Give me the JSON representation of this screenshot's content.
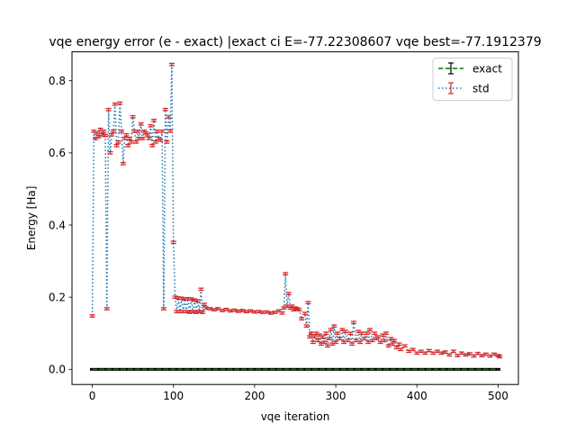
{
  "chart_data": {
    "type": "line",
    "title": "vqe energy error (e - exact) |exact ci E=-77.22308607 vqe best=-77.1912379",
    "xlabel": "vqe iteration",
    "ylabel": "Energy [Ha]",
    "xlim": [
      -25,
      525
    ],
    "ylim": [
      -0.042,
      0.88
    ],
    "xticks": [
      0,
      100,
      200,
      300,
      400,
      500
    ],
    "yticks": [
      0.0,
      0.2,
      0.4,
      0.6,
      0.8
    ],
    "xtick_labels": [
      "0",
      "100",
      "200",
      "300",
      "400",
      "500"
    ],
    "ytick_labels": [
      "0.0",
      "0.2",
      "0.4",
      "0.6",
      "0.8"
    ],
    "grid": false,
    "legend_position": "top-right",
    "legend": [
      "exact",
      "std"
    ],
    "series": [
      {
        "name": "exact",
        "style": "dashed",
        "color": "#008000",
        "errorbar_color": "#000000",
        "x_range": [
          0,
          500
        ],
        "constant_value": 0.0
      },
      {
        "name": "std",
        "style": "dotted",
        "color": "#1f77b4",
        "errorbar_color": "#d62728",
        "errorbar_halfwidth": 0.003,
        "points": [
          [
            0,
            0.148
          ],
          [
            2,
            0.66
          ],
          [
            4,
            0.64
          ],
          [
            6,
            0.655
          ],
          [
            8,
            0.645
          ],
          [
            10,
            0.665
          ],
          [
            12,
            0.65
          ],
          [
            14,
            0.66
          ],
          [
            16,
            0.648
          ],
          [
            18,
            0.168
          ],
          [
            20,
            0.72
          ],
          [
            22,
            0.6
          ],
          [
            24,
            0.65
          ],
          [
            26,
            0.66
          ],
          [
            28,
            0.735
          ],
          [
            30,
            0.62
          ],
          [
            32,
            0.63
          ],
          [
            34,
            0.738
          ],
          [
            36,
            0.66
          ],
          [
            38,
            0.57
          ],
          [
            40,
            0.64
          ],
          [
            42,
            0.65
          ],
          [
            44,
            0.62
          ],
          [
            46,
            0.64
          ],
          [
            48,
            0.63
          ],
          [
            50,
            0.7
          ],
          [
            52,
            0.66
          ],
          [
            54,
            0.63
          ],
          [
            56,
            0.66
          ],
          [
            58,
            0.64
          ],
          [
            60,
            0.68
          ],
          [
            62,
            0.64
          ],
          [
            64,
            0.66
          ],
          [
            66,
            0.655
          ],
          [
            68,
            0.65
          ],
          [
            70,
            0.64
          ],
          [
            72,
            0.675
          ],
          [
            74,
            0.62
          ],
          [
            76,
            0.69
          ],
          [
            78,
            0.63
          ],
          [
            80,
            0.66
          ],
          [
            82,
            0.64
          ],
          [
            84,
            0.635
          ],
          [
            86,
            0.66
          ],
          [
            88,
            0.168
          ],
          [
            90,
            0.72
          ],
          [
            92,
            0.63
          ],
          [
            94,
            0.7
          ],
          [
            96,
            0.66
          ],
          [
            98,
            0.845
          ],
          [
            100,
            0.352
          ],
          [
            102,
            0.2
          ],
          [
            104,
            0.16
          ],
          [
            106,
            0.198
          ],
          [
            108,
            0.16
          ],
          [
            110,
            0.197
          ],
          [
            112,
            0.16
          ],
          [
            114,
            0.195
          ],
          [
            116,
            0.16
          ],
          [
            118,
            0.196
          ],
          [
            120,
            0.158
          ],
          [
            122,
            0.195
          ],
          [
            124,
            0.16
          ],
          [
            126,
            0.192
          ],
          [
            128,
            0.158
          ],
          [
            130,
            0.19
          ],
          [
            132,
            0.16
          ],
          [
            134,
            0.222
          ],
          [
            136,
            0.158
          ],
          [
            138,
            0.18
          ],
          [
            140,
            0.17
          ],
          [
            145,
            0.168
          ],
          [
            150,
            0.165
          ],
          [
            155,
            0.168
          ],
          [
            160,
            0.163
          ],
          [
            165,
            0.166
          ],
          [
            170,
            0.162
          ],
          [
            175,
            0.164
          ],
          [
            180,
            0.161
          ],
          [
            185,
            0.163
          ],
          [
            190,
            0.16
          ],
          [
            195,
            0.162
          ],
          [
            200,
            0.159
          ],
          [
            205,
            0.16
          ],
          [
            210,
            0.158
          ],
          [
            215,
            0.159
          ],
          [
            220,
            0.156
          ],
          [
            225,
            0.158
          ],
          [
            230,
            0.162
          ],
          [
            234,
            0.156
          ],
          [
            236,
            0.17
          ],
          [
            238,
            0.265
          ],
          [
            240,
            0.175
          ],
          [
            242,
            0.21
          ],
          [
            244,
            0.17
          ],
          [
            246,
            0.175
          ],
          [
            248,
            0.165
          ],
          [
            250,
            0.17
          ],
          [
            252,
            0.168
          ],
          [
            255,
            0.165
          ],
          [
            258,
            0.14
          ],
          [
            262,
            0.155
          ],
          [
            264,
            0.12
          ],
          [
            266,
            0.185
          ],
          [
            268,
            0.09
          ],
          [
            270,
            0.1
          ],
          [
            272,
            0.075
          ],
          [
            274,
            0.09
          ],
          [
            276,
            0.1
          ],
          [
            278,
            0.08
          ],
          [
            280,
            0.095
          ],
          [
            282,
            0.07
          ],
          [
            284,
            0.09
          ],
          [
            286,
            0.075
          ],
          [
            288,
            0.1
          ],
          [
            290,
            0.065
          ],
          [
            292,
            0.085
          ],
          [
            294,
            0.11
          ],
          [
            296,
            0.07
          ],
          [
            298,
            0.12
          ],
          [
            300,
            0.075
          ],
          [
            302,
            0.1
          ],
          [
            305,
            0.085
          ],
          [
            308,
            0.11
          ],
          [
            310,
            0.075
          ],
          [
            312,
            0.105
          ],
          [
            315,
            0.08
          ],
          [
            318,
            0.1
          ],
          [
            320,
            0.07
          ],
          [
            322,
            0.13
          ],
          [
            325,
            0.08
          ],
          [
            328,
            0.105
          ],
          [
            330,
            0.075
          ],
          [
            332,
            0.1
          ],
          [
            335,
            0.085
          ],
          [
            338,
            0.1
          ],
          [
            340,
            0.075
          ],
          [
            342,
            0.11
          ],
          [
            345,
            0.08
          ],
          [
            348,
            0.1
          ],
          [
            350,
            0.085
          ],
          [
            352,
            0.09
          ],
          [
            355,
            0.075
          ],
          [
            358,
            0.095
          ],
          [
            360,
            0.08
          ],
          [
            362,
            0.1
          ],
          [
            365,
            0.065
          ],
          [
            368,
            0.085
          ],
          [
            370,
            0.07
          ],
          [
            372,
            0.08
          ],
          [
            375,
            0.06
          ],
          [
            378,
            0.07
          ],
          [
            380,
            0.055
          ],
          [
            385,
            0.065
          ],
          [
            390,
            0.05
          ],
          [
            395,
            0.055
          ],
          [
            400,
            0.045
          ],
          [
            405,
            0.05
          ],
          [
            410,
            0.045
          ],
          [
            415,
            0.052
          ],
          [
            420,
            0.045
          ],
          [
            425,
            0.05
          ],
          [
            430,
            0.045
          ],
          [
            435,
            0.048
          ],
          [
            440,
            0.04
          ],
          [
            445,
            0.05
          ],
          [
            450,
            0.038
          ],
          [
            455,
            0.045
          ],
          [
            460,
            0.04
          ],
          [
            465,
            0.043
          ],
          [
            470,
            0.037
          ],
          [
            475,
            0.044
          ],
          [
            480,
            0.038
          ],
          [
            485,
            0.042
          ],
          [
            490,
            0.037
          ],
          [
            495,
            0.042
          ],
          [
            500,
            0.038
          ],
          [
            502,
            0.035
          ]
        ]
      }
    ]
  }
}
